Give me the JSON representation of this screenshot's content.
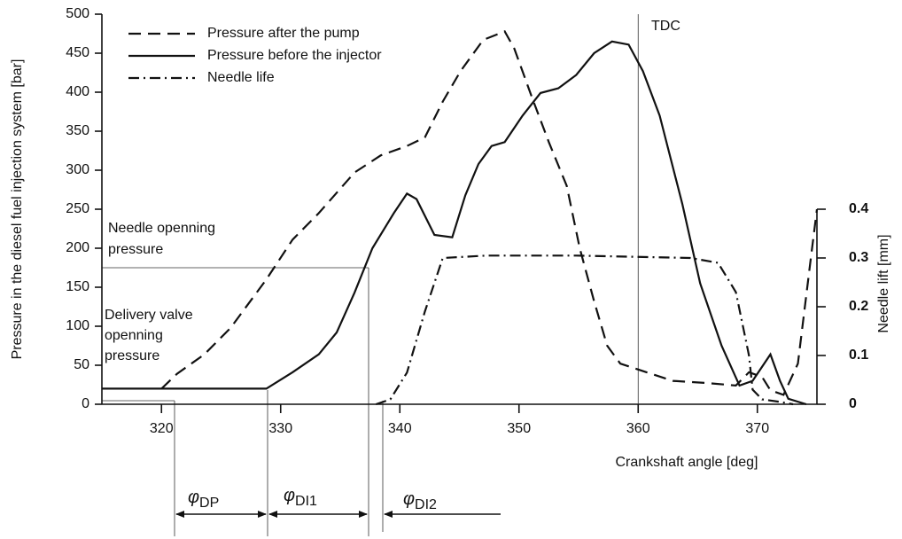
{
  "chart_data": {
    "type": "line",
    "x_label": "Crankshaft angle [deg]",
    "y_label": "Pressure in the diesel fuel injection system [bar]",
    "y2_label": "Needle lift [mm]",
    "xlim": [
      315,
      375
    ],
    "xticks": [
      320,
      330,
      340,
      350,
      360,
      370
    ],
    "ylim": [
      0,
      500
    ],
    "yticks": [
      0,
      50,
      100,
      150,
      200,
      250,
      300,
      350,
      400,
      450,
      500
    ],
    "y2lim": [
      0,
      0.8
    ],
    "y2ticks": [
      0,
      0.1,
      0.2,
      0.3,
      0.4
    ],
    "legend": "top-left",
    "series": [
      {
        "name": "Pressure after the pump",
        "color": "#111111",
        "dash": "dashed",
        "x": [
          320,
          321.3,
          323.6,
          325.8,
          328.8,
          331,
          333.2,
          336.2,
          338.4,
          340.6,
          342.1,
          343.6,
          345.1,
          347,
          348.8,
          349.6,
          351.1,
          352.5,
          354,
          355.1,
          356.3,
          357.4,
          358.5,
          360.7,
          362.9,
          365.9,
          368.2,
          369.3,
          370.4,
          371.1,
          372.2,
          373.4,
          374.5,
          375
        ],
        "values": [
          20,
          39,
          64,
          98,
          160,
          211,
          245,
          297,
          319,
          331,
          342,
          388,
          427,
          467,
          478,
          456,
          393,
          336,
          280,
          200,
          132,
          75,
          52,
          41,
          30,
          27,
          24,
          41,
          35,
          18,
          12,
          52,
          189,
          250
        ]
      },
      {
        "name": "Pressure before the injector",
        "color": "#111111",
        "dash": "solid",
        "x": [
          315,
          328.8,
          331,
          333.2,
          334.7,
          336.2,
          337.7,
          339.5,
          340.6,
          341.4,
          342.9,
          344.4,
          345.5,
          346.6,
          347.7,
          348.8,
          350.3,
          351.8,
          353.3,
          354.8,
          356.3,
          357.8,
          359.2,
          360.4,
          361.8,
          363.7,
          365.2,
          367,
          368.5,
          369.6,
          371.1,
          371.9,
          372.6,
          374.1
        ],
        "values": [
          20,
          20,
          41,
          64,
          92,
          143,
          200,
          245,
          270,
          263,
          217,
          214,
          268,
          308,
          331,
          336,
          370,
          399,
          405,
          422,
          450,
          465,
          461,
          427,
          370,
          257,
          155,
          75,
          24,
          30,
          64,
          30,
          7,
          0
        ]
      },
      {
        "name": "Needle life",
        "color": "#111111",
        "dash": "dashdot",
        "axis": "y2",
        "x": [
          338,
          339.2,
          340.6,
          342.1,
          343.6,
          347.3,
          354.8,
          364.4,
          366.7,
          368.2,
          369.3,
          369.6,
          370.4,
          371.9,
          373
        ],
        "values": [
          0,
          0.01,
          0.065,
          0.19,
          0.3,
          0.305,
          0.305,
          0.3,
          0.29,
          0.23,
          0.1,
          0.03,
          0.01,
          0.005,
          0
        ]
      }
    ],
    "annotations": {
      "tdc": "TDC",
      "needle_open": [
        "Needle openning",
        "pressure"
      ],
      "delivery": [
        "Delivery valve",
        "openning",
        "pressure"
      ],
      "phi": [
        {
          "symbol": "φ",
          "sub": "DP"
        },
        {
          "symbol": "φ",
          "sub": "DI1"
        },
        {
          "symbol": "φ",
          "sub": "DI2"
        }
      ]
    }
  }
}
